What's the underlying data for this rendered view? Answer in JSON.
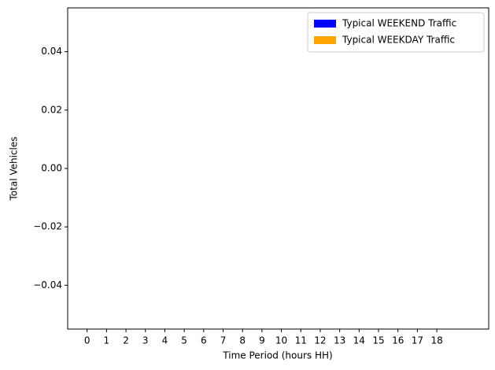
{
  "chart_data": {
    "type": "bar",
    "xlabel": "Time Period (hours HH)",
    "ylabel": "Total Vehicles",
    "categories": [
      "0",
      "1",
      "2",
      "3",
      "4",
      "5",
      "6",
      "7",
      "8",
      "9",
      "10",
      "11",
      "12",
      "13",
      "14",
      "15",
      "16",
      "17",
      "18"
    ],
    "series": [
      {
        "name": "Typical WEEKEND Traffic",
        "color": "#0000ff",
        "values": [
          0,
          0,
          0,
          0,
          0,
          0,
          0,
          0,
          0,
          0,
          0,
          0,
          0,
          0,
          0,
          0,
          0,
          0,
          0
        ]
      },
      {
        "name": "Typical WEEKDAY Traffic",
        "color": "#ffa500",
        "values": [
          0,
          0,
          0,
          0,
          0,
          0,
          0,
          0,
          0,
          0,
          0,
          0,
          0,
          0,
          0,
          0,
          0,
          0,
          0
        ]
      }
    ],
    "ylim": [
      -0.055,
      0.055
    ],
    "yticks": [
      {
        "value": -0.04,
        "label": "−0.04"
      },
      {
        "value": -0.02,
        "label": "−0.02"
      },
      {
        "value": 0,
        "label": "0.00"
      },
      0.02,
      0.04
    ],
    "legend": "upper right"
  }
}
